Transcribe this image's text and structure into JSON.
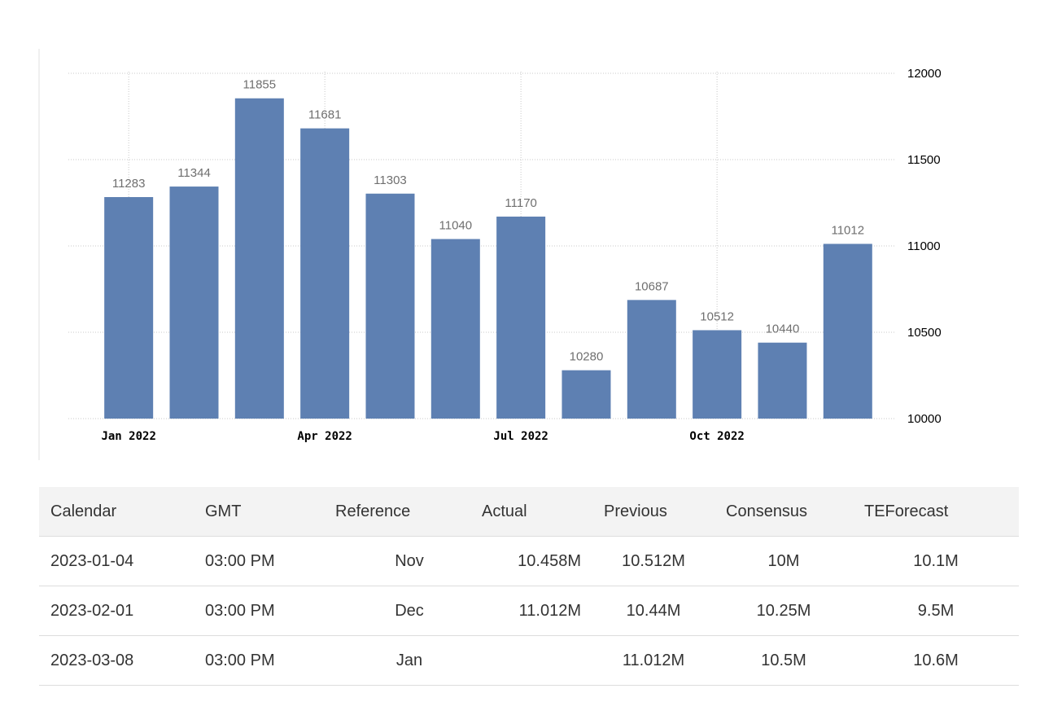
{
  "chart_data": {
    "type": "bar",
    "categories": [
      "Jan 2022",
      "Feb 2022",
      "Mar 2022",
      "Apr 2022",
      "May 2022",
      "Jun 2022",
      "Jul 2022",
      "Aug 2022",
      "Sep 2022",
      "Oct 2022",
      "Nov 2022",
      "Dec 2022"
    ],
    "values": [
      11283,
      11344,
      11855,
      11681,
      11303,
      11040,
      11170,
      10280,
      10687,
      10512,
      10440,
      11012
    ],
    "value_labels": [
      "11283",
      "11344",
      "11855",
      "11681",
      "11303",
      "11040",
      "11170",
      "10280",
      "10687",
      "10512",
      "10440",
      "11012"
    ],
    "x_tick_labels": [
      {
        "label": "Jan 2022",
        "category": "Jan 2022"
      },
      {
        "label": "Apr 2022",
        "category": "Apr 2022"
      },
      {
        "label": "Jul 2022",
        "category": "Jul 2022"
      },
      {
        "label": "Oct 2022",
        "category": "Oct 2022"
      }
    ],
    "y_ticks": [
      10000,
      10500,
      11000,
      11500,
      12000
    ],
    "y_tick_labels": [
      "10000",
      "10500",
      "11000",
      "11500",
      "12000"
    ],
    "ylim": [
      10000,
      12000
    ],
    "y_axis_side": "right",
    "grid": true,
    "title": "",
    "xlabel": "",
    "ylabel": "",
    "bar_color": "#5e80b2",
    "grid_color": "#c8c8c8"
  },
  "table": {
    "headers": [
      "Calendar",
      "GMT",
      "Reference",
      "Actual",
      "Previous",
      "Consensus",
      "TEForecast"
    ],
    "rows": [
      {
        "calendar": "2023-01-04",
        "gmt": "03:00 PM",
        "reference": "Nov",
        "actual": "10.458M",
        "previous": "10.512M",
        "consensus": "10M",
        "teforecast": "10.1M"
      },
      {
        "calendar": "2023-02-01",
        "gmt": "03:00 PM",
        "reference": "Dec",
        "actual": "11.012M",
        "previous": "10.44M",
        "consensus": "10.25M",
        "teforecast": "9.5M"
      },
      {
        "calendar": "2023-03-08",
        "gmt": "03:00 PM",
        "reference": "Jan",
        "actual": "",
        "previous": "11.012M",
        "consensus": "10.5M",
        "teforecast": "10.6M"
      }
    ]
  }
}
